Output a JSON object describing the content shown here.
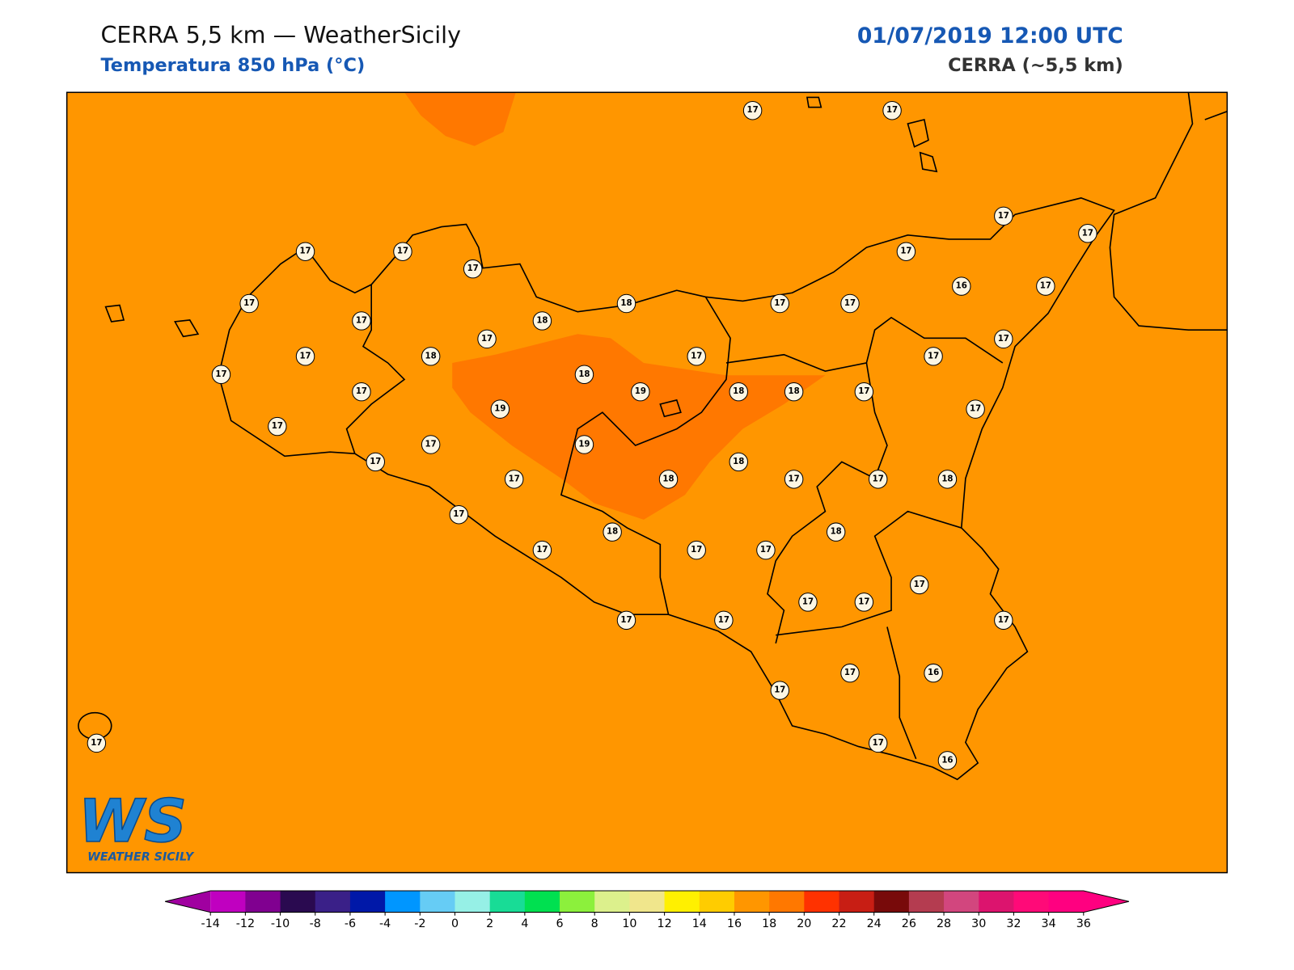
{
  "header": {
    "title": "CERRA 5,5 km — WeatherSicily",
    "subtitle": "Temperatura 850 hPa (°C)",
    "datetime": "01/07/2019 12:00 UTC",
    "model": "CERRA (~5,5 km)"
  },
  "stations": [
    17,
    17,
    17,
    17,
    17,
    17,
    17,
    17,
    17,
    18,
    17,
    17,
    16,
    17,
    17,
    18,
    17,
    17,
    17,
    18,
    17,
    17,
    17,
    18,
    17,
    19,
    18,
    18,
    17,
    19,
    17,
    17,
    17,
    19,
    17,
    18,
    17,
    18,
    17,
    17,
    18,
    17,
    18,
    18,
    17,
    17,
    17,
    17,
    17,
    17,
    17,
    17,
    17,
    17,
    16,
    17,
    17,
    16,
    17
  ],
  "colorbar": {
    "ticks": [
      -14,
      -12,
      -10,
      -8,
      -6,
      -4,
      -2,
      0,
      2,
      4,
      6,
      8,
      10,
      12,
      14,
      16,
      18,
      20,
      22,
      24,
      26,
      28,
      30,
      32,
      34,
      36
    ],
    "colors": [
      "#c000c0",
      "#800090",
      "#2a0a50",
      "#3a2088",
      "#0018a8",
      "#0096ff",
      "#66ccf5",
      "#96f0e6",
      "#18dc96",
      "#00e050",
      "#8cf03c",
      "#dcf08c",
      "#f0e68c",
      "#fff000",
      "#ffcc00",
      "#ff9600",
      "#ff7800",
      "#ff3200",
      "#c81e14",
      "#780a0a",
      "#b43c50",
      "#d2467e",
      "#dc146e",
      "#ff0a78",
      "#ff0080"
    ],
    "under_color": "#a000a0",
    "over_color": "#ff0080"
  },
  "field": {
    "base_color": "#ff9600",
    "warm_color": "#ff7800"
  },
  "logo": {
    "initials": "WS",
    "name": "WEATHER SICILY"
  }
}
